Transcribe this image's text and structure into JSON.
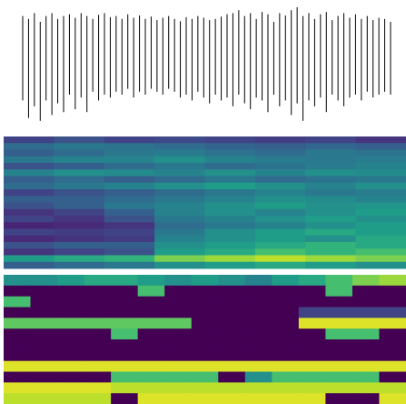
{
  "chart_data": [
    {
      "type": "waveform",
      "color": "#000000",
      "ylim": [
        -1,
        1
      ],
      "max": [
        0.85,
        0.8,
        0.9,
        0.75,
        0.85,
        0.9,
        0.8,
        0.85,
        0.88,
        0.82,
        0.9,
        0.85,
        0.8,
        0.87,
        0.9,
        0.83,
        0.85,
        0.8,
        0.88,
        0.82,
        0.86,
        0.8,
        0.84,
        0.78,
        0.82,
        0.85,
        0.8,
        0.76,
        0.83,
        0.8,
        0.85,
        0.82,
        0.78,
        0.8,
        0.84,
        0.88,
        0.9,
        0.95,
        0.85,
        0.9,
        0.8,
        0.92,
        0.88,
        0.75,
        0.9,
        0.86,
        0.95,
        1.0,
        0.85,
        0.9,
        0.8,
        0.88,
        0.92,
        0.78,
        0.85,
        0.9,
        0.82,
        0.88,
        0.8,
        0.85,
        0.78,
        0.82,
        0.8,
        0.75
      ],
      "min": [
        -0.6,
        -0.9,
        -0.7,
        -0.95,
        -0.6,
        -0.85,
        -0.65,
        -0.8,
        -0.5,
        -0.75,
        -0.55,
        -0.8,
        -0.45,
        -0.6,
        -0.5,
        -0.55,
        -0.45,
        -0.5,
        -0.4,
        -0.55,
        -0.45,
        -0.5,
        -0.4,
        -0.45,
        -0.5,
        -0.4,
        -0.45,
        -0.55,
        -0.5,
        -0.6,
        -0.45,
        -0.55,
        -0.65,
        -0.5,
        -0.6,
        -0.55,
        -0.7,
        -0.5,
        -0.65,
        -0.75,
        -0.55,
        -0.6,
        -0.8,
        -0.5,
        -0.7,
        -0.6,
        -0.85,
        -0.65,
        -0.95,
        -0.6,
        -0.7,
        -0.55,
        -0.8,
        -0.5,
        -0.6,
        -0.7,
        -0.55,
        -0.5,
        -0.6,
        -0.45,
        -0.55,
        -0.5,
        -0.45,
        -0.5
      ]
    },
    {
      "type": "heatmap",
      "colormap": "viridis",
      "vlim": [
        0,
        1
      ],
      "z": [
        [
          0.2,
          0.25,
          0.2,
          0.22,
          0.2,
          0.18,
          0.2,
          0.15
        ],
        [
          0.35,
          0.4,
          0.38,
          0.35,
          0.32,
          0.3,
          0.33,
          0.3
        ],
        [
          0.3,
          0.35,
          0.4,
          0.42,
          0.38,
          0.35,
          0.4,
          0.38
        ],
        [
          0.4,
          0.45,
          0.45,
          0.5,
          0.45,
          0.42,
          0.4,
          0.42
        ],
        [
          0.25,
          0.3,
          0.35,
          0.4,
          0.35,
          0.38,
          0.42,
          0.45
        ],
        [
          0.45,
          0.5,
          0.48,
          0.45,
          0.5,
          0.45,
          0.5,
          0.48
        ],
        [
          0.3,
          0.35,
          0.3,
          0.35,
          0.4,
          0.35,
          0.38,
          0.4
        ],
        [
          0.35,
          0.4,
          0.45,
          0.5,
          0.55,
          0.5,
          0.45,
          0.5
        ],
        [
          0.2,
          0.25,
          0.3,
          0.35,
          0.4,
          0.45,
          0.4,
          0.42
        ],
        [
          0.3,
          0.3,
          0.35,
          0.4,
          0.45,
          0.5,
          0.48,
          0.45
        ],
        [
          0.25,
          0.3,
          0.4,
          0.45,
          0.5,
          0.55,
          0.5,
          0.52
        ],
        [
          0.15,
          0.2,
          0.3,
          0.45,
          0.5,
          0.45,
          0.5,
          0.55
        ],
        [
          0.2,
          0.15,
          0.25,
          0.4,
          0.45,
          0.5,
          0.55,
          0.5
        ],
        [
          0.1,
          0.12,
          0.15,
          0.35,
          0.4,
          0.45,
          0.5,
          0.55
        ],
        [
          0.2,
          0.18,
          0.2,
          0.4,
          0.5,
          0.55,
          0.6,
          0.55
        ],
        [
          0.12,
          0.15,
          0.18,
          0.45,
          0.5,
          0.55,
          0.5,
          0.6
        ],
        [
          0.25,
          0.3,
          0.3,
          0.5,
          0.55,
          0.6,
          0.65,
          0.6
        ],
        [
          0.15,
          0.2,
          0.25,
          0.55,
          0.6,
          0.7,
          0.65,
          0.7
        ],
        [
          0.55,
          0.6,
          0.65,
          0.8,
          0.85,
          0.9,
          0.85,
          0.8
        ],
        [
          0.3,
          0.35,
          0.4,
          0.5,
          0.55,
          0.6,
          0.55,
          0.5
        ]
      ]
    },
    {
      "type": "heatmap",
      "colormap": "viridis",
      "vlim": [
        0,
        1
      ],
      "z": [
        [
          0.5,
          0.5,
          0.55,
          0.6,
          0.6,
          0.55,
          0.5,
          0.55,
          0.5,
          0.45,
          0.55,
          0.6,
          0.7,
          0.8,
          0.85
        ],
        [
          0,
          0,
          0,
          0,
          0,
          0.7,
          0,
          0,
          0,
          0,
          0,
          0,
          0.7,
          0,
          0
        ],
        [
          0.7,
          0,
          0,
          0,
          0,
          0,
          0,
          0,
          0,
          0,
          0,
          0,
          0,
          0,
          0
        ],
        [
          0,
          0,
          0,
          0,
          0,
          0,
          0,
          0,
          0,
          0,
          0,
          0.2,
          0.2,
          0.2,
          0.2
        ],
        [
          0.75,
          0.75,
          0.75,
          0.75,
          0.75,
          0.75,
          0.75,
          0,
          0,
          0,
          0,
          0.95,
          0.95,
          0.95,
          0.95
        ],
        [
          0,
          0,
          0,
          0,
          0.7,
          0,
          0,
          0,
          0,
          0,
          0,
          0,
          0.7,
          0.7,
          0
        ],
        [
          0,
          0,
          0,
          0,
          0,
          0,
          0,
          0,
          0,
          0,
          0,
          0,
          0,
          0,
          0
        ],
        [
          0,
          0,
          0,
          0,
          0,
          0,
          0,
          0,
          0,
          0,
          0,
          0,
          0,
          0,
          0
        ],
        [
          0.95,
          0.95,
          0.95,
          0.95,
          0.95,
          0.95,
          0.95,
          0.95,
          0.95,
          0.95,
          0.95,
          0.95,
          0.95,
          0.95,
          0.95
        ],
        [
          0,
          0,
          0,
          0,
          0.7,
          0.7,
          0.7,
          0.7,
          0,
          0.5,
          0.7,
          0.7,
          0.7,
          0.7,
          0
        ],
        [
          0.95,
          0.95,
          0.95,
          0.95,
          0.9,
          0.9,
          0.9,
          0.9,
          0.9,
          0.9,
          0.9,
          0.9,
          0.9,
          0.9,
          0.9
        ],
        [
          0.9,
          0.9,
          0.9,
          0.9,
          0,
          0.95,
          0.95,
          0.95,
          0.95,
          0.95,
          0.95,
          0.95,
          0,
          0,
          0.95
        ]
      ]
    }
  ]
}
